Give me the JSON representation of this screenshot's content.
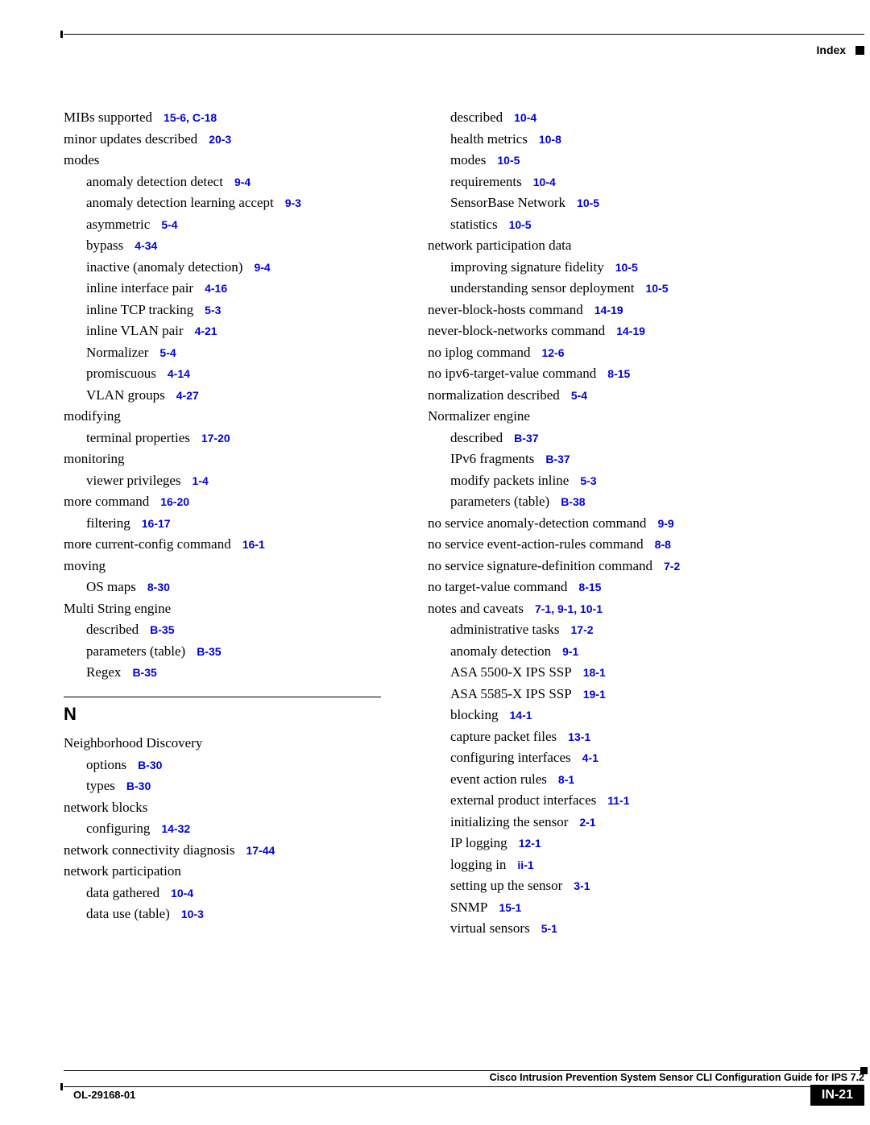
{
  "header": {
    "title": "Index"
  },
  "footer": {
    "guide": "Cisco Intrusion Prevention System Sensor CLI Configuration Guide for IPS 7.2",
    "doc_id": "OL-29168-01",
    "page_num": "IN-21"
  },
  "section_letter": "N",
  "left": [
    {
      "t": "MIBs supported",
      "r": "15-6, C-18",
      "l": 1
    },
    {
      "t": "minor updates described",
      "r": "20-3",
      "l": 1
    },
    {
      "t": "modes",
      "r": "",
      "l": 1
    },
    {
      "t": "anomaly detection detect",
      "r": "9-4",
      "l": 2
    },
    {
      "t": "anomaly detection learning accept",
      "r": "9-3",
      "l": 2
    },
    {
      "t": "asymmetric",
      "r": "5-4",
      "l": 2
    },
    {
      "t": "bypass",
      "r": "4-34",
      "l": 2
    },
    {
      "t": "inactive (anomaly detection)",
      "r": "9-4",
      "l": 2
    },
    {
      "t": "inline interface pair",
      "r": "4-16",
      "l": 2
    },
    {
      "t": "inline TCP tracking",
      "r": "5-3",
      "l": 2
    },
    {
      "t": "inline VLAN pair",
      "r": "4-21",
      "l": 2
    },
    {
      "t": "Normalizer",
      "r": "5-4",
      "l": 2
    },
    {
      "t": "promiscuous",
      "r": "4-14",
      "l": 2
    },
    {
      "t": "VLAN groups",
      "r": "4-27",
      "l": 2
    },
    {
      "t": "modifying",
      "r": "",
      "l": 1
    },
    {
      "t": "terminal properties",
      "r": "17-20",
      "l": 2
    },
    {
      "t": "monitoring",
      "r": "",
      "l": 1
    },
    {
      "t": "viewer privileges",
      "r": "1-4",
      "l": 2
    },
    {
      "t": "more command",
      "r": "16-20",
      "l": 1
    },
    {
      "t": "filtering",
      "r": "16-17",
      "l": 2
    },
    {
      "t": "more current-config command",
      "r": "16-1",
      "l": 1
    },
    {
      "t": "moving",
      "r": "",
      "l": 1
    },
    {
      "t": "OS maps",
      "r": "8-30",
      "l": 2
    },
    {
      "t": "Multi String engine",
      "r": "",
      "l": 1
    },
    {
      "t": "described",
      "r": "B-35",
      "l": 2
    },
    {
      "t": "parameters (table)",
      "r": "B-35",
      "l": 2
    },
    {
      "t": "Regex",
      "r": "B-35",
      "l": 2
    }
  ],
  "left_after": [
    {
      "t": "Neighborhood Discovery",
      "r": "",
      "l": 1
    },
    {
      "t": "options",
      "r": "B-30",
      "l": 2
    },
    {
      "t": "types",
      "r": "B-30",
      "l": 2
    },
    {
      "t": "network blocks",
      "r": "",
      "l": 1
    },
    {
      "t": "configuring",
      "r": "14-32",
      "l": 2
    },
    {
      "t": "network connectivity diagnosis",
      "r": "17-44",
      "l": 1
    },
    {
      "t": "network participation",
      "r": "",
      "l": 1
    },
    {
      "t": "data gathered",
      "r": "10-4",
      "l": 2
    },
    {
      "t": "data use (table)",
      "r": "10-3",
      "l": 2
    }
  ],
  "right": [
    {
      "t": "described",
      "r": "10-4",
      "l": 2
    },
    {
      "t": "health metrics",
      "r": "10-8",
      "l": 2
    },
    {
      "t": "modes",
      "r": "10-5",
      "l": 2
    },
    {
      "t": "requirements",
      "r": "10-4",
      "l": 2
    },
    {
      "t": "SensorBase Network",
      "r": "10-5",
      "l": 2
    },
    {
      "t": "statistics",
      "r": "10-5",
      "l": 2
    },
    {
      "t": "network participation data",
      "r": "",
      "l": 1
    },
    {
      "t": "improving signature fidelity",
      "r": "10-5",
      "l": 2
    },
    {
      "t": "understanding sensor deployment",
      "r": "10-5",
      "l": 2
    },
    {
      "t": "never-block-hosts command",
      "r": "14-19",
      "l": 1
    },
    {
      "t": "never-block-networks command",
      "r": "14-19",
      "l": 1
    },
    {
      "t": "no iplog command",
      "r": "12-6",
      "l": 1
    },
    {
      "t": "no ipv6-target-value command",
      "r": "8-15",
      "l": 1
    },
    {
      "t": "normalization described",
      "r": "5-4",
      "l": 1
    },
    {
      "t": "Normalizer engine",
      "r": "",
      "l": 1
    },
    {
      "t": "described",
      "r": "B-37",
      "l": 2
    },
    {
      "t": "IPv6 fragments",
      "r": "B-37",
      "l": 2
    },
    {
      "t": "modify packets inline",
      "r": "5-3",
      "l": 2
    },
    {
      "t": "parameters (table)",
      "r": "B-38",
      "l": 2
    },
    {
      "t": "no service anomaly-detection command",
      "r": "9-9",
      "l": 1
    },
    {
      "t": "no service event-action-rules command",
      "r": "8-8",
      "l": 1
    },
    {
      "t": "no service signature-definition command",
      "r": "7-2",
      "l": 1
    },
    {
      "t": "no target-value command",
      "r": "8-15",
      "l": 1
    },
    {
      "t": "notes and caveats",
      "r": "7-1, 9-1, 10-1",
      "l": 1
    },
    {
      "t": "administrative tasks",
      "r": "17-2",
      "l": 2
    },
    {
      "t": "anomaly detection",
      "r": "9-1",
      "l": 2
    },
    {
      "t": "ASA 5500-X IPS SSP",
      "r": "18-1",
      "l": 2
    },
    {
      "t": "ASA 5585-X IPS SSP",
      "r": "19-1",
      "l": 2
    },
    {
      "t": "blocking",
      "r": "14-1",
      "l": 2
    },
    {
      "t": "capture packet files",
      "r": "13-1",
      "l": 2
    },
    {
      "t": "configuring interfaces",
      "r": "4-1",
      "l": 2
    },
    {
      "t": "event action rules",
      "r": "8-1",
      "l": 2
    },
    {
      "t": "external product interfaces",
      "r": "11-1",
      "l": 2
    },
    {
      "t": "initializing the sensor",
      "r": "2-1",
      "l": 2
    },
    {
      "t": "IP logging",
      "r": "12-1",
      "l": 2
    },
    {
      "t": "logging in",
      "r": "ii-1",
      "l": 2
    },
    {
      "t": "setting up the sensor",
      "r": "3-1",
      "l": 2
    },
    {
      "t": "SNMP",
      "r": "15-1",
      "l": 2
    },
    {
      "t": "virtual sensors",
      "r": "5-1",
      "l": 2
    }
  ]
}
